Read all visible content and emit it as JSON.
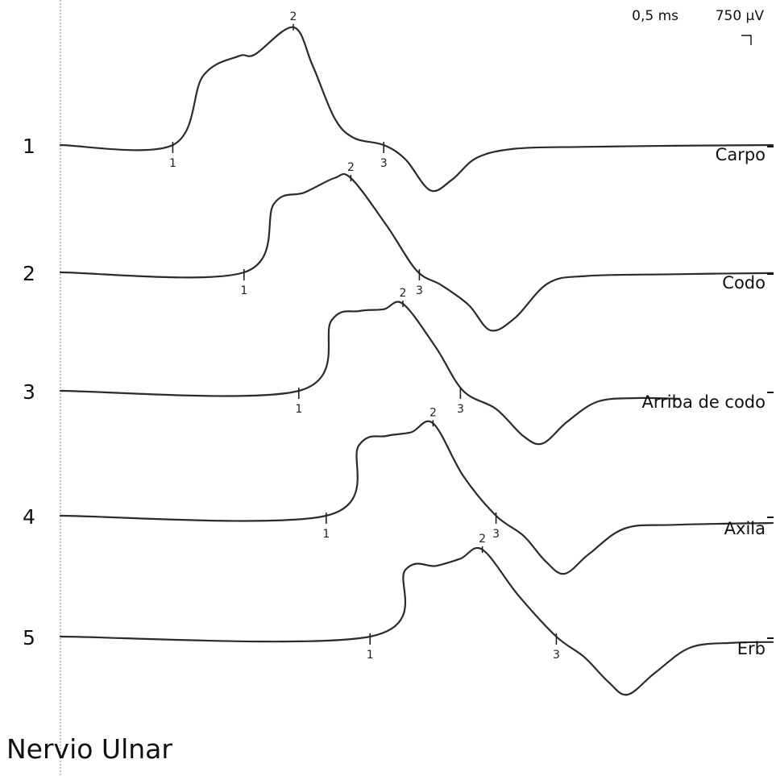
{
  "page": {
    "title": "Nervio Ulnar"
  },
  "chart_data": {
    "type": "line",
    "title": "Nervio Ulnar",
    "time_scale": "0,5 ms",
    "amplitude_scale": "750 µV",
    "trace_color": "#2b2b2b",
    "baseline_color": "#888888",
    "series": [
      {
        "number": "1",
        "label": "Carpo",
        "points": [
          [
            0,
            0
          ],
          [
            2.05,
            0
          ],
          [
            2.6,
            1.9
          ],
          [
            3.25,
            2.45
          ],
          [
            3.55,
            2.5
          ],
          [
            4.25,
            3.25
          ],
          [
            4.6,
            2.2
          ],
          [
            5.0,
            0.75
          ],
          [
            5.35,
            0.2
          ],
          [
            5.9,
            0
          ],
          [
            6.3,
            -0.4
          ],
          [
            6.75,
            -1.25
          ],
          [
            7.15,
            -0.95
          ],
          [
            7.6,
            -0.35
          ],
          [
            8.3,
            -0.1
          ],
          [
            9.5,
            -0.05
          ],
          [
            11.2,
            -0.02
          ],
          [
            13.0,
            0
          ]
        ],
        "markers": [
          {
            "label": "1",
            "x": 2.05,
            "y": 0
          },
          {
            "label": "2",
            "x": 4.25,
            "y": 3.25
          },
          {
            "label": "3",
            "x": 5.9,
            "y": 0
          }
        ]
      },
      {
        "number": "2",
        "label": "Codo",
        "points": [
          [
            0,
            0
          ],
          [
            3.35,
            0
          ],
          [
            3.9,
            1.9
          ],
          [
            4.45,
            2.2
          ],
          [
            5.0,
            2.6
          ],
          [
            5.3,
            2.6
          ],
          [
            5.95,
            1.3
          ],
          [
            6.5,
            0.05
          ],
          [
            6.95,
            -0.35
          ],
          [
            7.45,
            -0.9
          ],
          [
            7.85,
            -1.6
          ],
          [
            8.3,
            -1.25
          ],
          [
            8.9,
            -0.3
          ],
          [
            9.6,
            -0.1
          ],
          [
            11.2,
            -0.05
          ],
          [
            13.0,
            -0.02
          ]
        ],
        "markers": [
          {
            "label": "1",
            "x": 3.35,
            "y": 0
          },
          {
            "label": "2",
            "x": 5.3,
            "y": 2.6
          },
          {
            "label": "3",
            "x": 6.55,
            "y": 0
          }
        ]
      },
      {
        "number": "3",
        "label": "Arriba de codo",
        "points": [
          [
            0,
            0
          ],
          [
            4.35,
            0
          ],
          [
            4.95,
            1.95
          ],
          [
            5.45,
            2.2
          ],
          [
            5.9,
            2.25
          ],
          [
            6.25,
            2.4
          ],
          [
            6.85,
            1.2
          ],
          [
            7.35,
            0
          ],
          [
            7.95,
            -0.5
          ],
          [
            8.45,
            -1.25
          ],
          [
            8.8,
            -1.45
          ],
          [
            9.25,
            -0.85
          ],
          [
            9.8,
            -0.3
          ],
          [
            10.5,
            -0.2
          ],
          [
            11.3,
            -0.22
          ]
        ],
        "markers": [
          {
            "label": "1",
            "x": 4.35,
            "y": 0
          },
          {
            "label": "2",
            "x": 6.25,
            "y": 2.4
          },
          {
            "label": "3",
            "x": 7.3,
            "y": 0
          }
        ]
      },
      {
        "number": "4",
        "label": "Axila",
        "points": [
          [
            0,
            0
          ],
          [
            4.85,
            0
          ],
          [
            5.45,
            1.95
          ],
          [
            5.95,
            2.2
          ],
          [
            6.4,
            2.3
          ],
          [
            6.8,
            2.55
          ],
          [
            7.35,
            1.1
          ],
          [
            7.95,
            0
          ],
          [
            8.45,
            -0.55
          ],
          [
            8.85,
            -1.25
          ],
          [
            9.2,
            -1.6
          ],
          [
            9.65,
            -1.05
          ],
          [
            10.3,
            -0.35
          ],
          [
            11.2,
            -0.25
          ],
          [
            13.0,
            -0.2
          ]
        ],
        "markers": [
          {
            "label": "1",
            "x": 4.85,
            "y": 0
          },
          {
            "label": "2",
            "x": 6.8,
            "y": 2.55
          },
          {
            "label": "3",
            "x": 7.95,
            "y": 0
          }
        ]
      },
      {
        "number": "5",
        "label": "Erb",
        "points": [
          [
            0,
            0
          ],
          [
            5.65,
            0
          ],
          [
            6.3,
            1.85
          ],
          [
            6.85,
            1.95
          ],
          [
            7.3,
            2.15
          ],
          [
            7.7,
            2.4
          ],
          [
            8.35,
            1.15
          ],
          [
            9.05,
            0
          ],
          [
            9.55,
            -0.55
          ],
          [
            10.0,
            -1.25
          ],
          [
            10.35,
            -1.6
          ],
          [
            10.85,
            -1.0
          ],
          [
            11.5,
            -0.3
          ],
          [
            12.3,
            -0.17
          ],
          [
            13.0,
            -0.15
          ]
        ],
        "markers": [
          {
            "label": "1",
            "x": 5.65,
            "y": 0
          },
          {
            "label": "2",
            "x": 7.7,
            "y": 2.4
          },
          {
            "label": "3",
            "x": 9.05,
            "y": 0
          }
        ]
      }
    ]
  }
}
